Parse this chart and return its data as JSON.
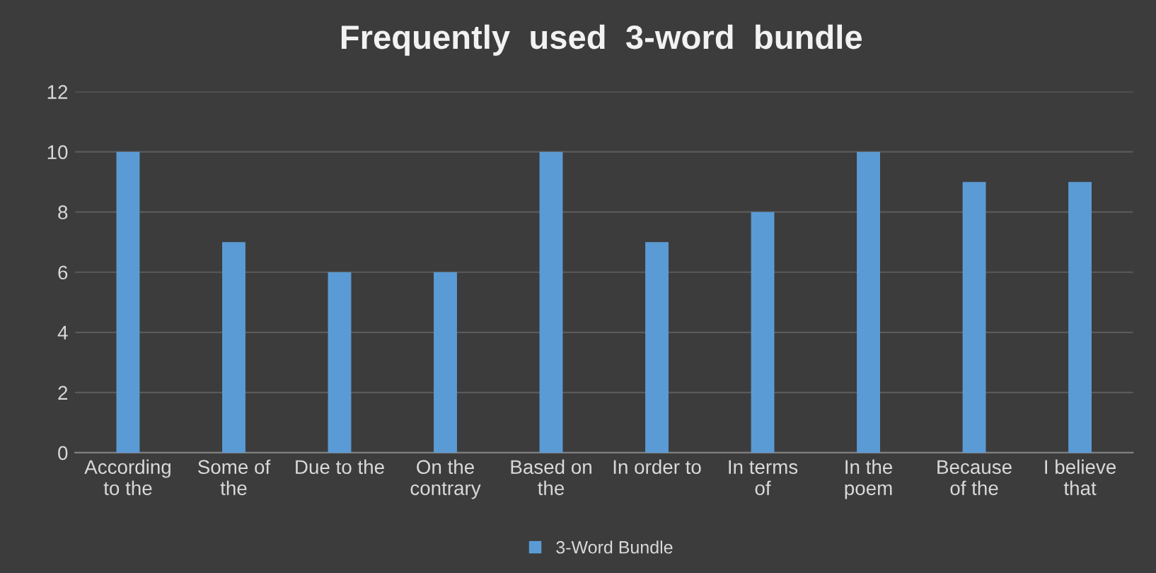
{
  "chart_data": {
    "type": "bar",
    "title": "Frequently  used  3-word  bundle",
    "categories": [
      "According\nto the",
      "Some of\nthe",
      "Due to the",
      "On the\ncontrary",
      "Based on\nthe",
      "In order to",
      "In terms\nof",
      "In the\npoem",
      "Because\nof the",
      "I believe\nthat"
    ],
    "series": [
      {
        "name": "3-Word Bundle",
        "color": "#5b9bd5",
        "values": [
          10,
          7,
          6,
          6,
          10,
          7,
          8,
          10,
          9,
          9
        ]
      }
    ],
    "ylim": [
      0,
      12
    ],
    "yticks": [
      0,
      2,
      4,
      6,
      8,
      10,
      12
    ],
    "grid": "y",
    "legend": "bottom"
  }
}
